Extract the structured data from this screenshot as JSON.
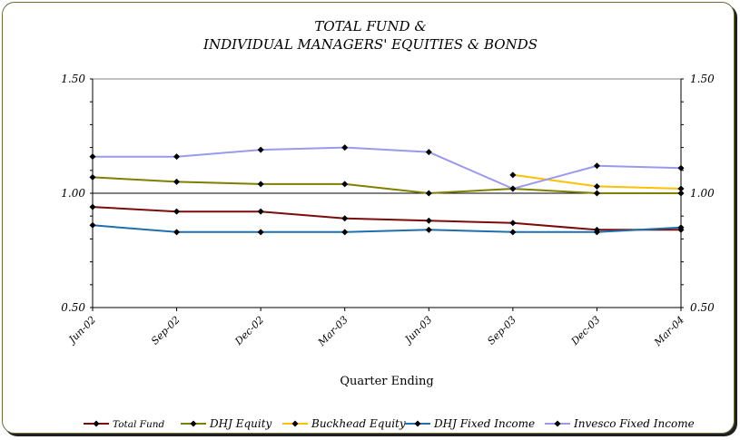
{
  "chart_data": {
    "type": "line",
    "title_lines": [
      "TOTAL FUND &",
      "INDIVIDUAL MANAGERS' EQUITIES & BONDS"
    ],
    "xlabel": "Quarter Ending",
    "categories": [
      "Jun-02",
      "Sep-02",
      "Dec-02",
      "Mar-03",
      "Jun-03",
      "Sep-03",
      "Dec-03",
      "Mar-04"
    ],
    "ylim": [
      0.5,
      1.5
    ],
    "yticks": [
      0.5,
      1.0,
      1.5
    ],
    "ytick_labels": [
      "0.50",
      "1.00",
      "1.50"
    ],
    "grid": false,
    "reference_line": 1.0,
    "legend_position": "bottom",
    "series": [
      {
        "name": "Total Fund",
        "color": "#7a0c0c",
        "values": [
          0.94,
          0.92,
          0.92,
          0.89,
          0.88,
          0.87,
          0.84,
          0.84
        ]
      },
      {
        "name": "DHJ Equity",
        "color": "#7f7f00",
        "values": [
          1.07,
          1.05,
          1.04,
          1.04,
          1.0,
          1.02,
          1.0,
          1.0
        ]
      },
      {
        "name": "Buckhead Equity",
        "color": "#ffc000",
        "values": [
          null,
          null,
          null,
          null,
          null,
          1.08,
          1.03,
          1.02
        ]
      },
      {
        "name": "DHJ Fixed Income",
        "color": "#1f6fae",
        "values": [
          0.86,
          0.83,
          0.83,
          0.83,
          0.84,
          0.83,
          0.83,
          0.85
        ]
      },
      {
        "name": "Invesco Fixed Income",
        "color": "#9999ee",
        "values": [
          1.16,
          1.16,
          1.19,
          1.2,
          1.18,
          1.02,
          1.12,
          1.11
        ]
      }
    ]
  }
}
